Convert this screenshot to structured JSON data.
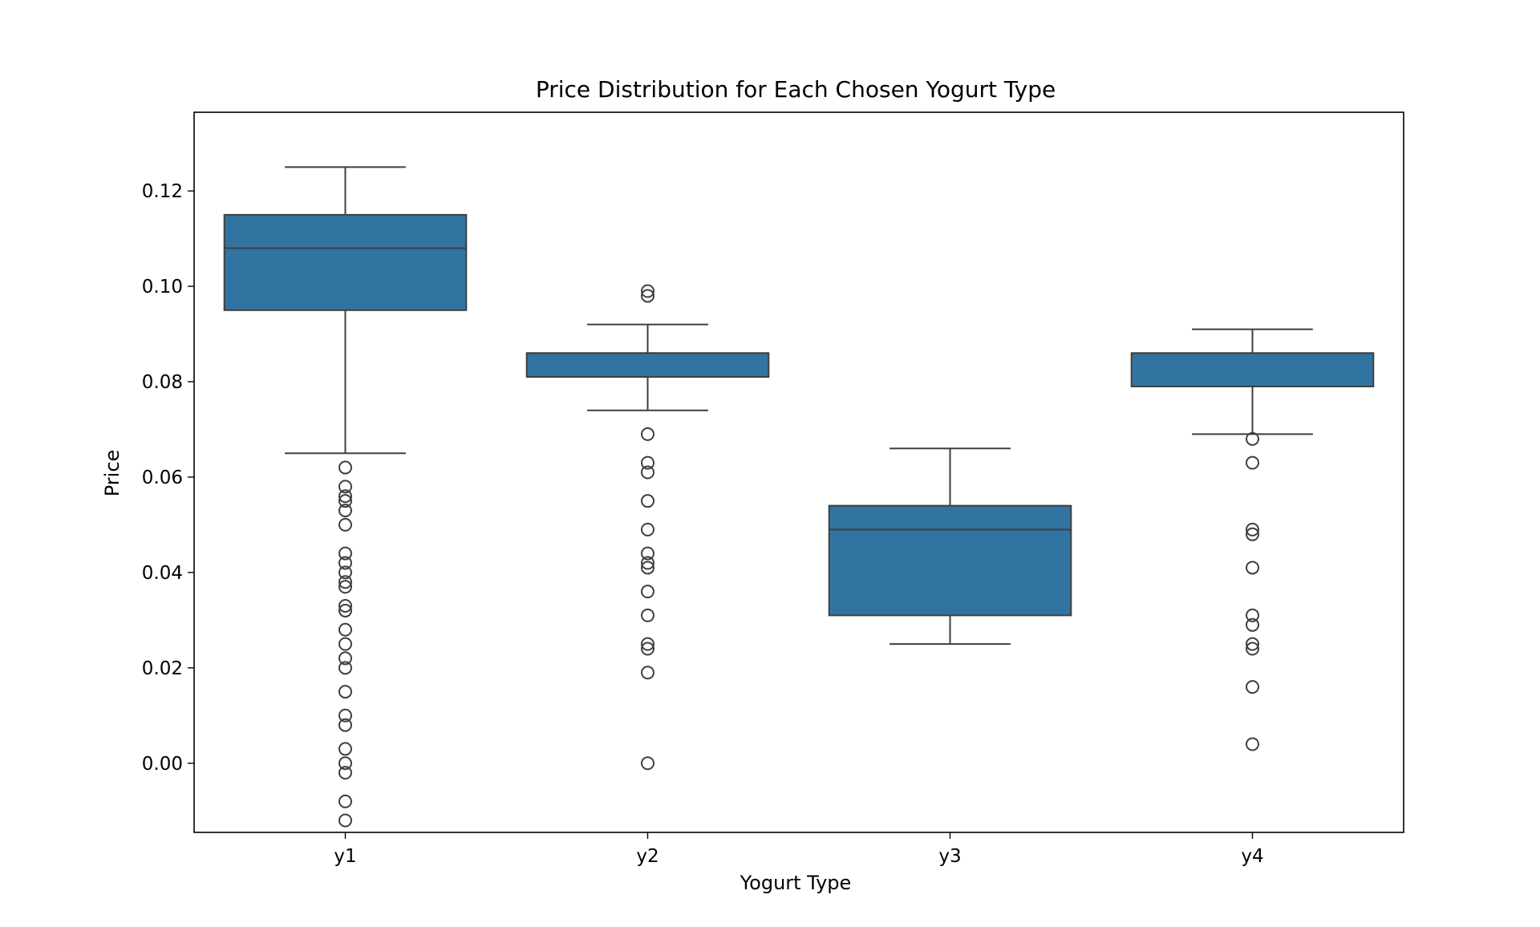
{
  "chart_data": {
    "type": "box",
    "title": "Price Distribution for Each Chosen Yogurt Type",
    "xlabel": "Yogurt Type",
    "ylabel": "Price",
    "categories": [
      "y1",
      "y2",
      "y3",
      "y4"
    ],
    "yticks": [
      "0.00",
      "0.02",
      "0.04",
      "0.06",
      "0.08",
      "0.10",
      "0.12"
    ],
    "ylim": [
      -0.0145,
      0.1365
    ],
    "grid": false,
    "colors": {
      "box_fill": "#3274a1",
      "box_edge": "#3f3f3f",
      "frame": "#000000"
    },
    "boxes": [
      {
        "category": "y1",
        "whisker_low": 0.065,
        "q1": 0.095,
        "median": 0.108,
        "q3": 0.115,
        "whisker_high": 0.125,
        "outliers": [
          0.062,
          0.058,
          0.056,
          0.055,
          0.053,
          0.05,
          0.044,
          0.042,
          0.04,
          0.038,
          0.037,
          0.033,
          0.032,
          0.028,
          0.025,
          0.022,
          0.02,
          0.015,
          0.01,
          0.008,
          0.003,
          0.0,
          -0.002,
          -0.008,
          -0.012
        ]
      },
      {
        "category": "y2",
        "whisker_low": 0.074,
        "q1": 0.081,
        "median": 0.086,
        "q3": 0.086,
        "whisker_high": 0.092,
        "outliers": [
          0.099,
          0.098,
          0.069,
          0.063,
          0.061,
          0.055,
          0.049,
          0.044,
          0.042,
          0.041,
          0.036,
          0.031,
          0.025,
          0.024,
          0.019,
          0.0
        ]
      },
      {
        "category": "y3",
        "whisker_low": 0.025,
        "q1": 0.031,
        "median": 0.049,
        "q3": 0.054,
        "whisker_high": 0.066,
        "outliers": []
      },
      {
        "category": "y4",
        "whisker_low": 0.069,
        "q1": 0.079,
        "median": 0.086,
        "q3": 0.086,
        "whisker_high": 0.091,
        "outliers": [
          0.068,
          0.063,
          0.049,
          0.048,
          0.041,
          0.031,
          0.029,
          0.025,
          0.024,
          0.016,
          0.004
        ]
      }
    ]
  }
}
